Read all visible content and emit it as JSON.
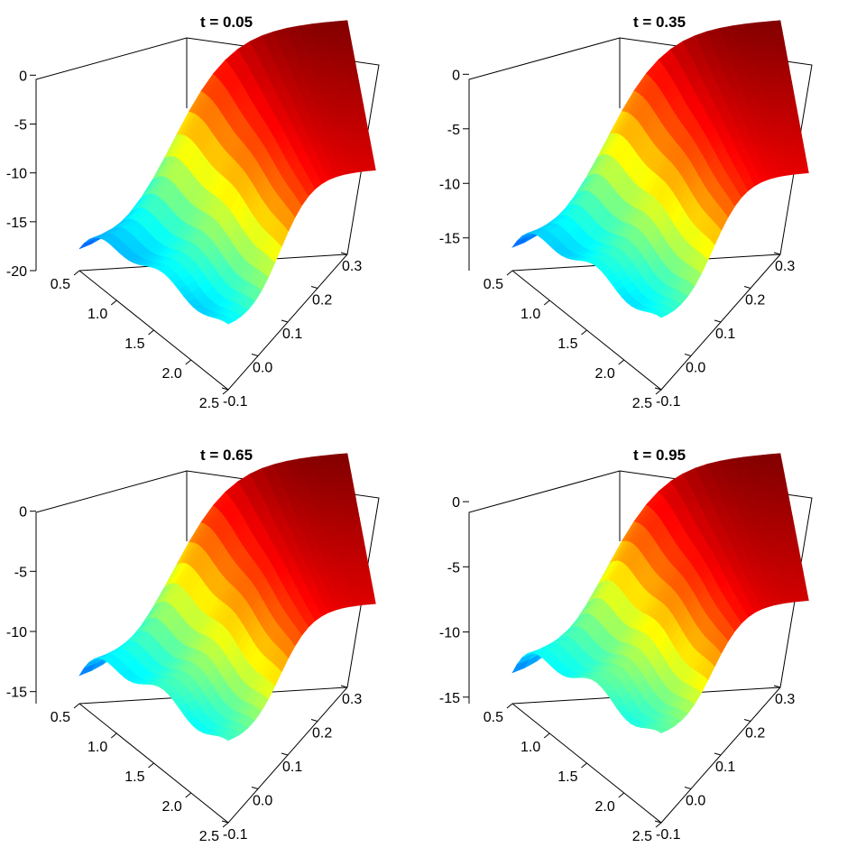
{
  "chart_data": [
    {
      "type": "surface",
      "title": "t = 0.05",
      "z_ticks": [
        "0",
        "-5",
        "-10",
        "-15",
        "-20"
      ],
      "x_ticks": [
        "0.5",
        "1.0",
        "1.5",
        "2.0",
        "2.5"
      ],
      "y_ticks": [
        "-0.1",
        "0.0",
        "0.1",
        "0.2",
        "0.3"
      ],
      "x_range": [
        0.5,
        2.5
      ],
      "y_range": [
        -0.1,
        0.3
      ],
      "z_range": [
        -20,
        4
      ],
      "surface": {
        "z_max": 4,
        "z_min": -20.5,
        "plateau_y": 0.3,
        "far_edge_drop": 0.6
      }
    },
    {
      "type": "surface",
      "title": "t = 0.35",
      "z_ticks": [
        "0",
        "-5",
        "-10",
        "-15"
      ],
      "x_ticks": [
        "0.5",
        "1.0",
        "1.5",
        "2.0",
        "2.5"
      ],
      "y_ticks": [
        "-0.1",
        "0.0",
        "0.1",
        "0.2",
        "0.3"
      ],
      "x_range": [
        0.5,
        2.5
      ],
      "y_range": [
        -0.1,
        0.3
      ],
      "z_range": [
        -18,
        3.5
      ],
      "surface": {
        "z_max": 3.5,
        "z_min": -18.5,
        "plateau_y": 0.3,
        "far_edge_drop": 0.6
      }
    },
    {
      "type": "surface",
      "title": "t = 0.65",
      "z_ticks": [
        "0",
        "-5",
        "-10",
        "-15"
      ],
      "x_ticks": [
        "0.5",
        "1.0",
        "1.5",
        "2.0",
        "2.5"
      ],
      "y_ticks": [
        "-0.1",
        "0.0",
        "0.1",
        "0.2",
        "0.3"
      ],
      "x_range": [
        0.5,
        2.5
      ],
      "y_range": [
        -0.1,
        0.3
      ],
      "z_range": [
        -16,
        3.5
      ],
      "surface": {
        "z_max": 3.5,
        "z_min": -16.2,
        "plateau_y": 0.3,
        "far_edge_drop": 0.5
      }
    },
    {
      "type": "surface",
      "title": "t = 0.95",
      "z_ticks": [
        "0",
        "-5",
        "-10",
        "-15"
      ],
      "x_ticks": [
        "0.5",
        "1.0",
        "1.5",
        "2.0",
        "2.5"
      ],
      "y_ticks": [
        "-0.1",
        "0.0",
        "0.1",
        "0.2",
        "0.3"
      ],
      "x_range": [
        0.5,
        2.5
      ],
      "y_range": [
        -0.1,
        0.3
      ],
      "z_range": [
        -15.5,
        2.5
      ],
      "surface": {
        "z_max": 2.5,
        "z_min": -15.6,
        "plateau_y": 0.3,
        "far_edge_drop": 0.4
      }
    }
  ]
}
